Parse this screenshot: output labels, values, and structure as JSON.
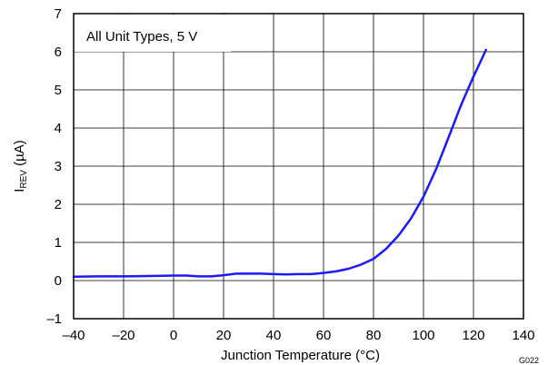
{
  "chart_data": {
    "type": "line",
    "title": "",
    "xlabel": "Junction Temperature (°C)",
    "ylabel_main": "I",
    "ylabel_sub": "REV",
    "ylabel_unit": " (µA)",
    "xlim": [
      -40,
      140
    ],
    "ylim": [
      -1,
      7
    ],
    "xticks": [
      -40,
      -20,
      0,
      20,
      40,
      60,
      80,
      100,
      120,
      140
    ],
    "yticks": [
      -1,
      0,
      1,
      2,
      3,
      4,
      5,
      6,
      7
    ],
    "xtick_labels": [
      "–40",
      "–20",
      "0",
      "20",
      "40",
      "60",
      "80",
      "100",
      "120",
      "140"
    ],
    "ytick_labels": [
      "–1",
      "0",
      "1",
      "2",
      "3",
      "4",
      "5",
      "6",
      "7"
    ],
    "grid": true,
    "annotation": "All Unit Types, 5 V",
    "figure_id": "G022",
    "series": [
      {
        "color": "#1a1aff",
        "x": [
          -40,
          -30,
          -20,
          -10,
          0,
          5,
          10,
          15,
          20,
          25,
          30,
          35,
          40,
          45,
          50,
          55,
          60,
          65,
          70,
          75,
          80,
          85,
          90,
          95,
          100,
          105,
          110,
          115,
          120,
          125
        ],
        "y": [
          0.1,
          0.11,
          0.11,
          0.12,
          0.13,
          0.13,
          0.11,
          0.11,
          0.14,
          0.18,
          0.18,
          0.18,
          0.17,
          0.16,
          0.17,
          0.17,
          0.2,
          0.24,
          0.31,
          0.42,
          0.57,
          0.83,
          1.18,
          1.63,
          2.2,
          2.92,
          3.75,
          4.6,
          5.35,
          6.05
        ]
      }
    ]
  }
}
